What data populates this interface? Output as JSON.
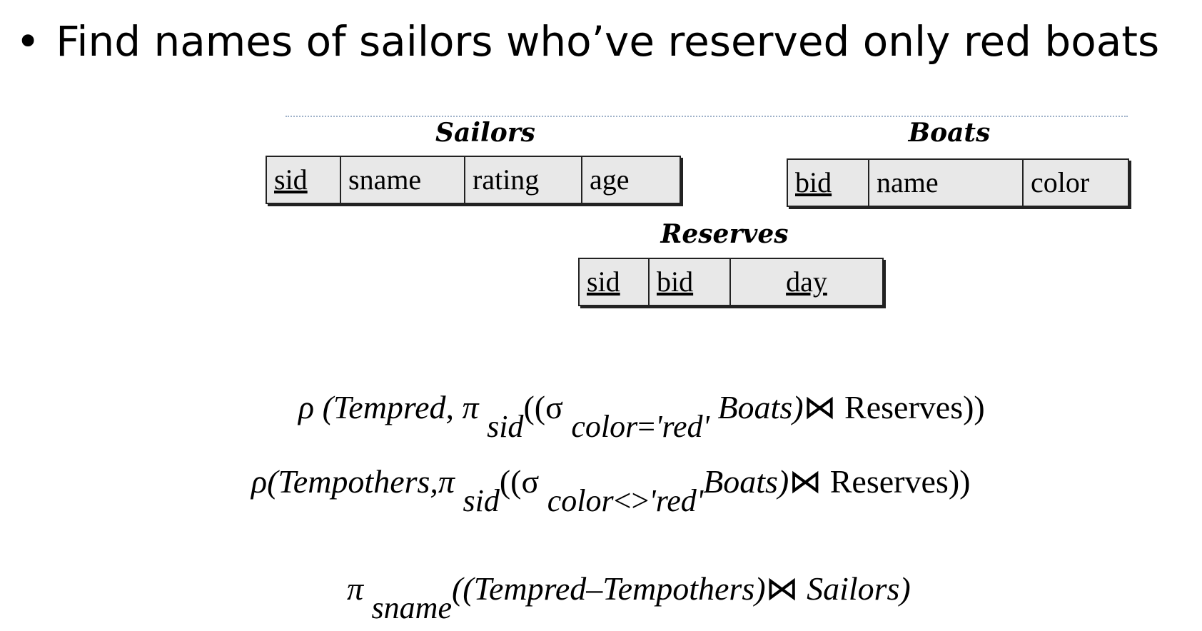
{
  "bullet": {
    "dot": "•",
    "text": "Find names of sailors who’ve reserved only red boats"
  },
  "schemas": {
    "sailors": {
      "title": "Sailors",
      "fields": [
        "sid",
        "sname",
        "rating",
        "age"
      ],
      "keys": [
        "sid"
      ]
    },
    "boats": {
      "title": "Boats",
      "fields": [
        "bid",
        "name",
        "color"
      ],
      "keys": [
        "bid"
      ]
    },
    "reserves": {
      "title": "Reserves",
      "fields": [
        "sid",
        "bid",
        "day"
      ],
      "keys": [
        "sid",
        "bid",
        "day"
      ]
    }
  },
  "expressions": {
    "e1": {
      "rho": "ρ",
      "open": "(Tempred, ",
      "pi": "π",
      "pi_sub": "sid",
      "mid": "((σ",
      "sigma_sub": "color",
      "eq": "=",
      "val": "'red'",
      "rel": " Boats)",
      "join": "⋈",
      "rel2": " Reserves",
      "close": "))"
    },
    "e2": {
      "rho": "ρ",
      "open": "(Tempothers,",
      "pi": "π",
      "pi_sub": "sid",
      "mid": "((σ",
      "sigma_sub": "color",
      "neq": "<>",
      "val": "'red'",
      "rel": "Boats)",
      "join": "⋈",
      "rel2": " Reserves",
      "close": "))"
    },
    "e3": {
      "pi": "π",
      "pi_sub": "sname",
      "open": "((Tempred",
      "minus": "–",
      "mid": "Tempothers)",
      "join": "⋈",
      "rel": " Sailors)"
    }
  }
}
